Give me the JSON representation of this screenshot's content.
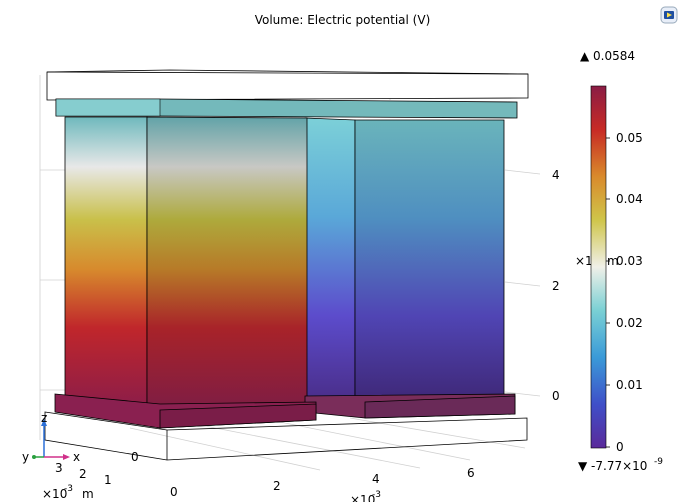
{
  "title": "Volume: Electric potential (V)",
  "colorbar": {
    "max_label": "▲ 0.0584",
    "min_label": "▼ -7.77×10",
    "min_exp": "-9",
    "ticks": [
      "0.05",
      "0.04",
      "0.03",
      "0.02",
      "0.01",
      "0"
    ]
  },
  "axes": {
    "right_ticks": [
      "4",
      "2",
      "0"
    ],
    "right_scale": "×10",
    "right_scale_exp": "-3",
    "right_unit": "m",
    "bottom_ticks": [
      "0",
      "2",
      "4",
      "6"
    ],
    "bottom_scale": "×10",
    "bottom_scale_exp": "-3",
    "depth_ticks": [
      "3",
      "2",
      "1",
      "0"
    ],
    "depth_scale": "×10",
    "depth_scale_exp": "-3",
    "depth_unit": "m"
  },
  "triad": {
    "x": "x",
    "y": "y",
    "z": "z"
  },
  "toolbar": {
    "icon": "camera-view-icon"
  },
  "colors": {
    "thermal_high": "#8b1a3a",
    "thermal_low": "#5a3aa0",
    "box_edge": "#000000"
  }
}
